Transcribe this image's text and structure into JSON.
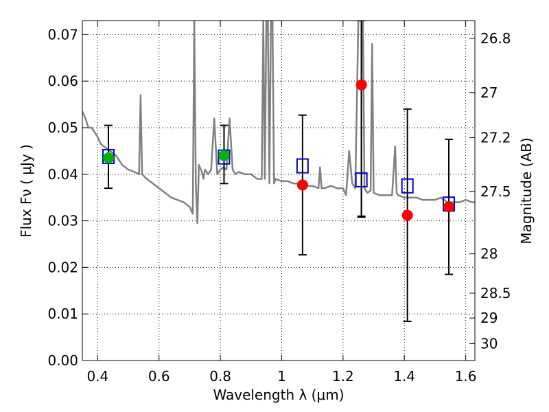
{
  "chart_data": {
    "type": "scatter",
    "title": "",
    "xlabel": "Wavelength  λ (μm)",
    "ylabel": "Flux  Fν  ( μJy )",
    "y2label": "Magnitude (AB)",
    "xlim": [
      0.35,
      1.63
    ],
    "ylim": [
      0.0,
      0.073
    ],
    "grid": true,
    "x_ticks": [
      "0.4",
      "0.6",
      "0.8",
      "1",
      "1.2",
      "1.4",
      "1.6"
    ],
    "x_tick_values": [
      0.4,
      0.6,
      0.8,
      1.0,
      1.2,
      1.4,
      1.6
    ],
    "y_ticks": [
      "0.00",
      "0.01",
      "0.02",
      "0.03",
      "0.04",
      "0.05",
      "0.06",
      "0.07"
    ],
    "y_tick_values": [
      0.0,
      0.01,
      0.02,
      0.03,
      0.04,
      0.05,
      0.06,
      0.07
    ],
    "mag_ticks": [
      "26.8",
      "27",
      "27.2",
      "27.5",
      "28",
      "28.5",
      "29",
      "30"
    ],
    "mag_tick_values": [
      26.8,
      27.0,
      27.2,
      27.5,
      28.0,
      28.5,
      29.0,
      30.0
    ],
    "colors": {
      "template": "#808080",
      "model": "#0000c8",
      "detections_optical": "#00b400",
      "detections_ir": "#ff0000",
      "errorbar": "#000000"
    },
    "series": [
      {
        "kind": "template-spectrum",
        "x": [
          0.35,
          0.36,
          0.37,
          0.38,
          0.39,
          0.4,
          0.41,
          0.42,
          0.43,
          0.44,
          0.45,
          0.46,
          0.47,
          0.48,
          0.49,
          0.5,
          0.52,
          0.535,
          0.54,
          0.545,
          0.56,
          0.58,
          0.6,
          0.62,
          0.64,
          0.66,
          0.68,
          0.7,
          0.71,
          0.715,
          0.72,
          0.725,
          0.73,
          0.74,
          0.745,
          0.75,
          0.76,
          0.77,
          0.78,
          0.79,
          0.8,
          0.81,
          0.82,
          0.83,
          0.84,
          0.85,
          0.86,
          0.88,
          0.9,
          0.92,
          0.935,
          0.94,
          0.945,
          0.95,
          0.955,
          0.96,
          0.965,
          0.97,
          0.975,
          0.98,
          1.0,
          1.02,
          1.04,
          1.06,
          1.08,
          1.1,
          1.12,
          1.125,
          1.13,
          1.14,
          1.16,
          1.18,
          1.2,
          1.21,
          1.22,
          1.23,
          1.24,
          1.25,
          1.26,
          1.265,
          1.27,
          1.28,
          1.29,
          1.295,
          1.3,
          1.32,
          1.34,
          1.36,
          1.37,
          1.375,
          1.38,
          1.4,
          1.42,
          1.44,
          1.46,
          1.48,
          1.5,
          1.52,
          1.54,
          1.56,
          1.58,
          1.6,
          1.62,
          1.63
        ],
        "y": [
          0.0535,
          0.052,
          0.05,
          0.05,
          0.049,
          0.048,
          0.0465,
          0.046,
          0.0455,
          0.045,
          0.0445,
          0.044,
          0.043,
          0.042,
          0.0415,
          0.041,
          0.0405,
          0.04,
          0.057,
          0.04,
          0.039,
          0.038,
          0.037,
          0.036,
          0.035,
          0.0345,
          0.034,
          0.033,
          0.0315,
          0.073,
          0.038,
          0.0295,
          0.042,
          0.0405,
          0.039,
          0.041,
          0.04,
          0.041,
          0.052,
          0.04,
          0.041,
          0.0415,
          0.041,
          0.052,
          0.041,
          0.04,
          0.0405,
          0.04,
          0.04,
          0.039,
          0.039,
          0.073,
          0.039,
          0.073,
          0.073,
          0.038,
          0.073,
          0.073,
          0.038,
          0.039,
          0.0385,
          0.0385,
          0.038,
          0.038,
          0.0375,
          0.0375,
          0.037,
          0.0415,
          0.037,
          0.037,
          0.0375,
          0.037,
          0.037,
          0.0355,
          0.045,
          0.038,
          0.037,
          0.073,
          0.073,
          0.073,
          0.037,
          0.036,
          0.0365,
          0.068,
          0.036,
          0.0355,
          0.0355,
          0.0355,
          0.046,
          0.036,
          0.0355,
          0.035,
          0.035,
          0.035,
          0.0345,
          0.0345,
          0.0345,
          0.035,
          0.034,
          0.034,
          0.034,
          0.0345,
          0.034,
          0.034
        ]
      },
      {
        "kind": "model-boxes",
        "x": [
          0.435,
          0.812,
          1.068,
          1.26,
          1.41,
          1.545
        ],
        "y": [
          0.0438,
          0.0437,
          0.0418,
          0.0388,
          0.0375,
          0.0336
        ]
      },
      {
        "kind": "detections-optical",
        "x": [
          0.435,
          0.812
        ],
        "y": [
          0.0435,
          0.044
        ],
        "yerr_low": [
          0.0065,
          0.006
        ],
        "yerr_high": [
          0.007,
          0.0065
        ]
      },
      {
        "kind": "detections-ir",
        "x": [
          1.068,
          1.26,
          1.41,
          1.545
        ],
        "y": [
          0.0377,
          0.0592,
          0.0312,
          0.033
        ],
        "yerr_low": [
          0.015,
          0.0282,
          0.0228,
          0.0145
        ],
        "yerr_high": [
          0.015,
          0.014,
          0.0228,
          0.0145
        ]
      },
      {
        "kind": "errorbar-only",
        "x": [
          1.26
        ],
        "y": [
          0.0388
        ],
        "yerr_low": [
          0.008
        ],
        "yerr_high": [
          0.0342
        ]
      }
    ]
  }
}
